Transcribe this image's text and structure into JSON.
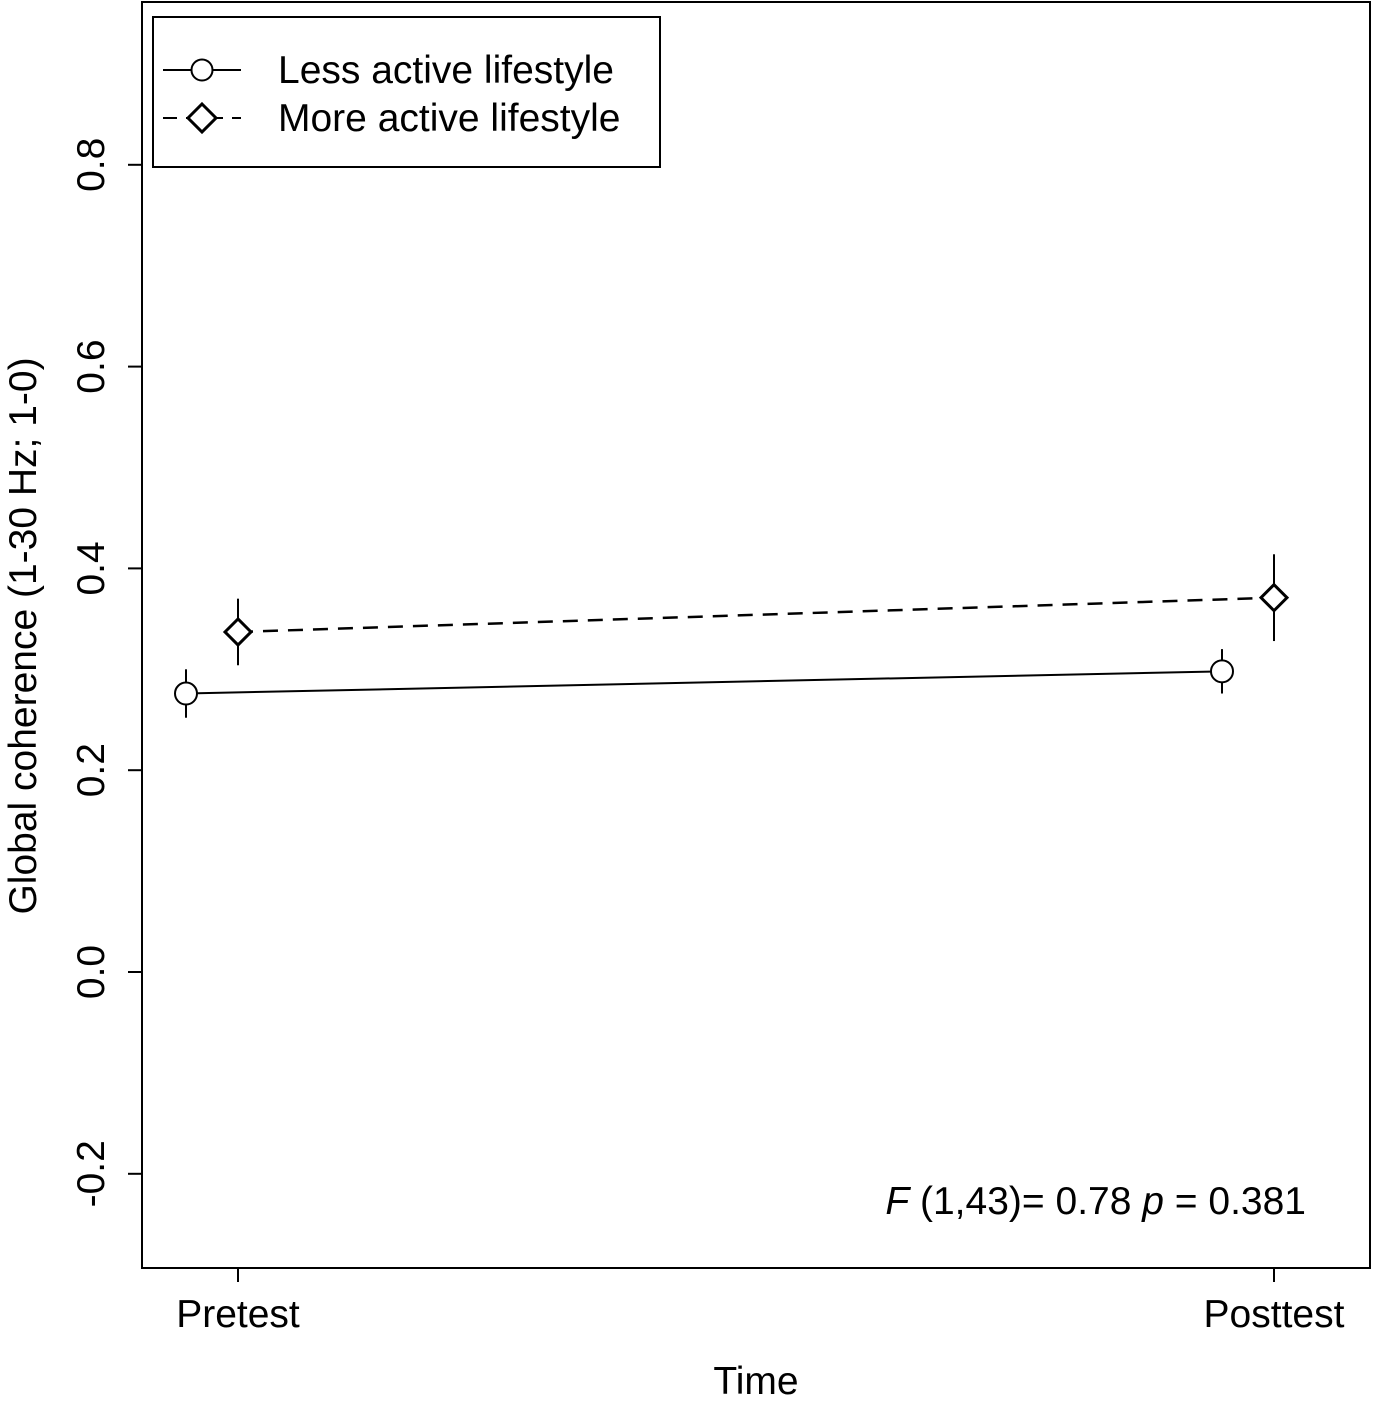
{
  "chart_data": {
    "type": "line",
    "xlabel": "Time",
    "ylabel": "Global coherence (1-30 Hz; 1-0)",
    "categories": [
      "Pretest",
      "Posttest"
    ],
    "ylim": [
      -0.3,
      0.95
    ],
    "yticks": [
      "-0.2",
      "0.0",
      "0.2",
      "0.4",
      "0.6",
      "0.8"
    ],
    "ytick_values": [
      -0.2,
      0.0,
      0.2,
      0.4,
      0.6,
      0.8
    ],
    "grid": false,
    "legend_position": "top-left",
    "series": [
      {
        "name": "Less active lifestyle",
        "marker": "circle",
        "line": "solid",
        "values": [
          0.276,
          0.298
        ],
        "error_low": [
          0.252,
          0.276
        ],
        "error_high": [
          0.3,
          0.32
        ]
      },
      {
        "name": "More active lifestyle",
        "marker": "diamond",
        "line": "dashed",
        "values": [
          0.337,
          0.371
        ],
        "error_low": [
          0.304,
          0.328
        ],
        "error_high": [
          0.37,
          0.414
        ]
      }
    ],
    "annotation": {
      "F_label": "F",
      "F_text": " (1,43)= 0.78 ",
      "p_label": "p",
      "p_text": " = 0.381"
    }
  }
}
